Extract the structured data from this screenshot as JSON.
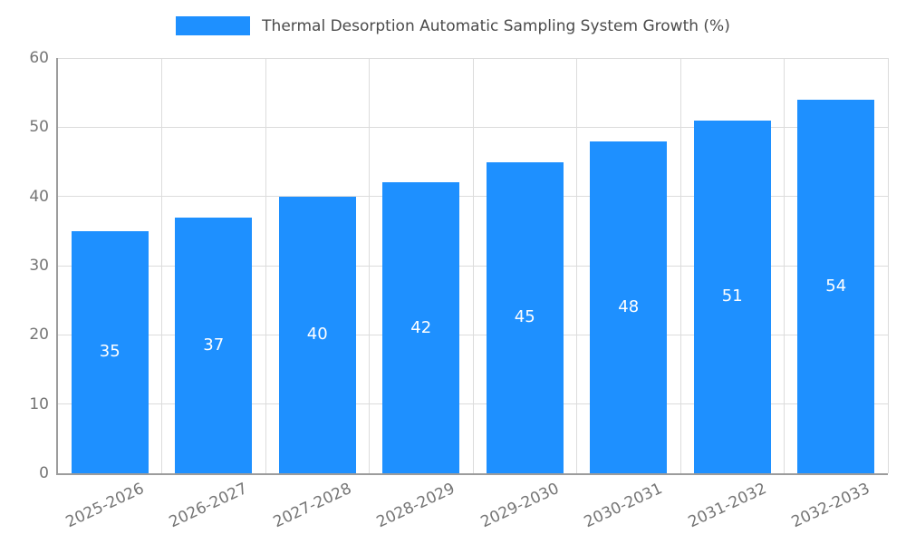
{
  "chart_data": {
    "type": "bar",
    "title": "Thermal Desorption Automatic Sampling System Growth (%)",
    "categories": [
      "2025-2026",
      "2026-2027",
      "2027-2028",
      "2028-2029",
      "2029-2030",
      "2030-2031",
      "2031-2032",
      "2032-2033"
    ],
    "values": [
      35,
      37,
      40,
      42,
      45,
      48,
      51,
      54
    ],
    "xlabel": "",
    "ylabel": "",
    "ylim": [
      0,
      60
    ],
    "yticks": [
      0,
      10,
      20,
      30,
      40,
      50,
      60
    ],
    "bar_color": "#1E90FF",
    "bar_label_color": "#ffffff",
    "grid": true,
    "legend_position": "top-center"
  }
}
